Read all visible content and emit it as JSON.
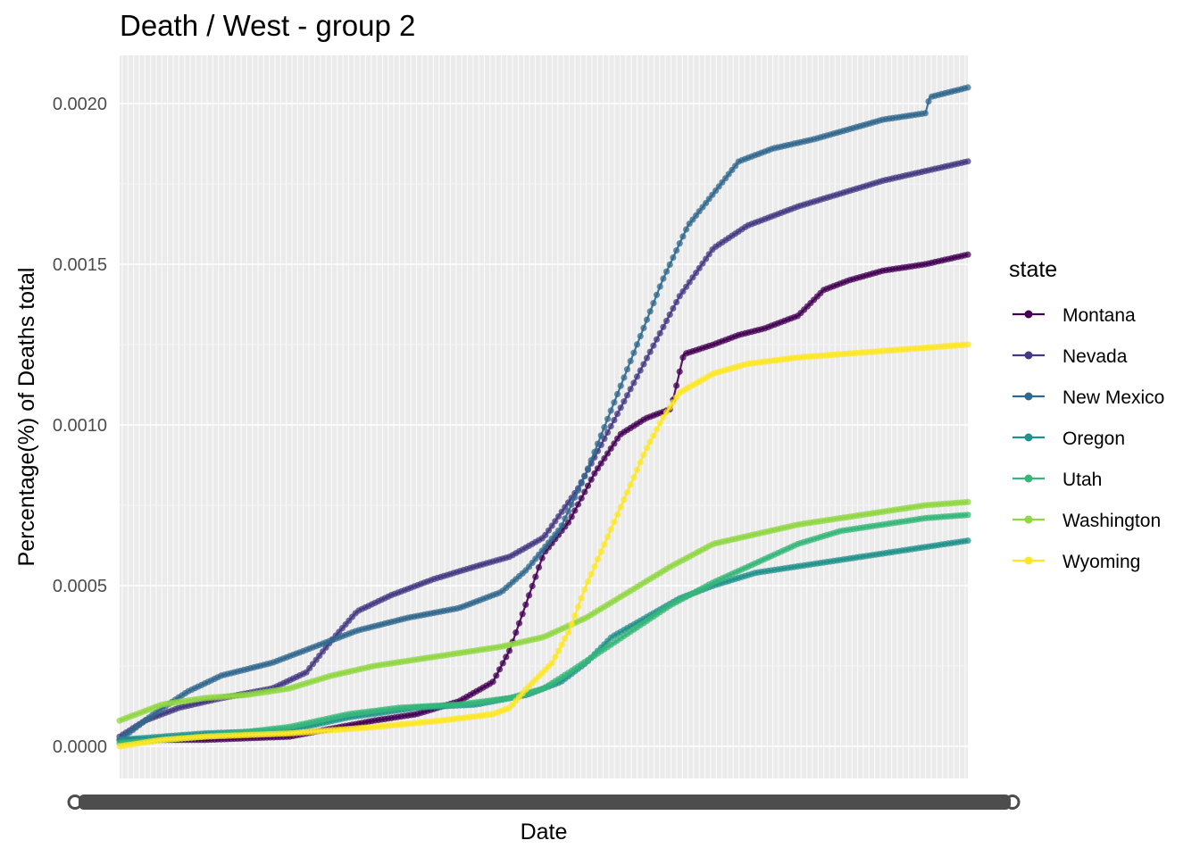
{
  "chart_data": {
    "type": "line",
    "title": "Death / West - group 2",
    "xlabel": "Date",
    "ylabel": "Percentage(%) of Deaths total",
    "ylim": [
      -0.0001,
      0.00215
    ],
    "xlim": [
      0,
      1
    ],
    "y_ticks": [
      0.0,
      0.0005,
      0.001,
      0.0015,
      0.002
    ],
    "y_tick_labels": [
      "0.0000",
      "0.0005",
      "0.0010",
      "0.0015",
      "0.0020"
    ],
    "x_tick_labels_note": "overlapping date labels rendered as an illegible dark band",
    "grid": true,
    "panel_background": "#ebebeb",
    "legend": {
      "title": "state",
      "position": "right"
    },
    "series": [
      {
        "name": "Montana",
        "color": "#440154",
        "points": [
          [
            0,
            2e-05
          ],
          [
            0.05,
            2e-05
          ],
          [
            0.1,
            2e-05
          ],
          [
            0.2,
            3e-05
          ],
          [
            0.3,
            8e-05
          ],
          [
            0.35,
            0.0001
          ],
          [
            0.4,
            0.00014
          ],
          [
            0.42,
            0.00017
          ],
          [
            0.44,
            0.0002
          ],
          [
            0.46,
            0.0003
          ],
          [
            0.48,
            0.00045
          ],
          [
            0.5,
            0.0006
          ],
          [
            0.53,
            0.0007
          ],
          [
            0.56,
            0.00085
          ],
          [
            0.59,
            0.00097
          ],
          [
            0.62,
            0.00102
          ],
          [
            0.65,
            0.00105
          ],
          [
            0.665,
            0.00122
          ],
          [
            0.7,
            0.00125
          ],
          [
            0.73,
            0.00128
          ],
          [
            0.76,
            0.0013
          ],
          [
            0.8,
            0.00134
          ],
          [
            0.83,
            0.00142
          ],
          [
            0.86,
            0.00145
          ],
          [
            0.9,
            0.00148
          ],
          [
            0.95,
            0.0015
          ],
          [
            1,
            0.00153
          ]
        ]
      },
      {
        "name": "Nevada",
        "color": "#443A83",
        "points": [
          [
            0,
            3e-05
          ],
          [
            0.03,
            8e-05
          ],
          [
            0.07,
            0.00012
          ],
          [
            0.12,
            0.00015
          ],
          [
            0.18,
            0.00018
          ],
          [
            0.22,
            0.00023
          ],
          [
            0.25,
            0.00033
          ],
          [
            0.28,
            0.00042
          ],
          [
            0.32,
            0.00047
          ],
          [
            0.37,
            0.00052
          ],
          [
            0.42,
            0.00056
          ],
          [
            0.46,
            0.00059
          ],
          [
            0.5,
            0.00065
          ],
          [
            0.54,
            0.0008
          ],
          [
            0.58,
            0.001
          ],
          [
            0.62,
            0.0012
          ],
          [
            0.66,
            0.0014
          ],
          [
            0.7,
            0.00155
          ],
          [
            0.74,
            0.00162
          ],
          [
            0.8,
            0.00168
          ],
          [
            0.85,
            0.00172
          ],
          [
            0.9,
            0.00176
          ],
          [
            0.95,
            0.00179
          ],
          [
            1,
            0.00182
          ]
        ]
      },
      {
        "name": "New Mexico",
        "color": "#31688E",
        "points": [
          [
            0,
            2e-05
          ],
          [
            0.04,
            0.0001
          ],
          [
            0.08,
            0.00017
          ],
          [
            0.12,
            0.00022
          ],
          [
            0.18,
            0.00026
          ],
          [
            0.22,
            0.0003
          ],
          [
            0.28,
            0.00036
          ],
          [
            0.34,
            0.0004
          ],
          [
            0.4,
            0.00043
          ],
          [
            0.45,
            0.00048
          ],
          [
            0.48,
            0.00055
          ],
          [
            0.52,
            0.00068
          ],
          [
            0.55,
            0.00085
          ],
          [
            0.58,
            0.00105
          ],
          [
            0.61,
            0.00125
          ],
          [
            0.64,
            0.00145
          ],
          [
            0.67,
            0.00162
          ],
          [
            0.7,
            0.00172
          ],
          [
            0.73,
            0.00182
          ],
          [
            0.77,
            0.00186
          ],
          [
            0.82,
            0.00189
          ],
          [
            0.86,
            0.00192
          ],
          [
            0.9,
            0.00195
          ],
          [
            0.95,
            0.00197
          ],
          [
            0.955,
            0.00202
          ],
          [
            1,
            0.00205
          ]
        ]
      },
      {
        "name": "Oregon",
        "color": "#21918C",
        "points": [
          [
            0,
            2e-05
          ],
          [
            0.1,
            4e-05
          ],
          [
            0.2,
            5e-05
          ],
          [
            0.27,
            9e-05
          ],
          [
            0.35,
            0.00012
          ],
          [
            0.42,
            0.00013
          ],
          [
            0.48,
            0.00016
          ],
          [
            0.52,
            0.0002
          ],
          [
            0.55,
            0.00026
          ],
          [
            0.58,
            0.00034
          ],
          [
            0.62,
            0.0004
          ],
          [
            0.66,
            0.00046
          ],
          [
            0.7,
            0.0005
          ],
          [
            0.75,
            0.00054
          ],
          [
            0.8,
            0.00056
          ],
          [
            0.85,
            0.00058
          ],
          [
            0.9,
            0.0006
          ],
          [
            0.95,
            0.00062
          ],
          [
            1,
            0.00064
          ]
        ]
      },
      {
        "name": "Utah",
        "color": "#35B779",
        "points": [
          [
            0,
            1e-05
          ],
          [
            0.1,
            3e-05
          ],
          [
            0.2,
            6e-05
          ],
          [
            0.27,
            0.0001
          ],
          [
            0.33,
            0.00012
          ],
          [
            0.4,
            0.00013
          ],
          [
            0.46,
            0.00015
          ],
          [
            0.5,
            0.00018
          ],
          [
            0.53,
            0.00023
          ],
          [
            0.57,
            0.0003
          ],
          [
            0.61,
            0.00037
          ],
          [
            0.65,
            0.00044
          ],
          [
            0.7,
            0.00051
          ],
          [
            0.75,
            0.00057
          ],
          [
            0.8,
            0.00063
          ],
          [
            0.85,
            0.00067
          ],
          [
            0.9,
            0.00069
          ],
          [
            0.95,
            0.00071
          ],
          [
            1,
            0.00072
          ]
        ]
      },
      {
        "name": "Washington",
        "color": "#90D743",
        "points": [
          [
            0,
            8e-05
          ],
          [
            0.05,
            0.00013
          ],
          [
            0.1,
            0.00015
          ],
          [
            0.15,
            0.00016
          ],
          [
            0.2,
            0.00018
          ],
          [
            0.25,
            0.00022
          ],
          [
            0.3,
            0.00025
          ],
          [
            0.35,
            0.00027
          ],
          [
            0.4,
            0.00029
          ],
          [
            0.45,
            0.00031
          ],
          [
            0.5,
            0.00034
          ],
          [
            0.55,
            0.0004
          ],
          [
            0.6,
            0.00048
          ],
          [
            0.65,
            0.00056
          ],
          [
            0.7,
            0.00063
          ],
          [
            0.75,
            0.00066
          ],
          [
            0.8,
            0.00069
          ],
          [
            0.85,
            0.00071
          ],
          [
            0.9,
            0.00073
          ],
          [
            0.95,
            0.00075
          ],
          [
            1,
            0.00076
          ]
        ]
      },
      {
        "name": "Wyoming",
        "color": "#FDE725",
        "points": [
          [
            0,
            0.0
          ],
          [
            0.05,
            2e-05
          ],
          [
            0.1,
            3e-05
          ],
          [
            0.2,
            4e-05
          ],
          [
            0.3,
            6e-05
          ],
          [
            0.38,
            8e-05
          ],
          [
            0.44,
            0.0001
          ],
          [
            0.46,
            0.00012
          ],
          [
            0.48,
            0.00018
          ],
          [
            0.51,
            0.00026
          ],
          [
            0.53,
            0.00036
          ],
          [
            0.55,
            0.0005
          ],
          [
            0.57,
            0.00062
          ],
          [
            0.6,
            0.0008
          ],
          [
            0.62,
            0.00092
          ],
          [
            0.64,
            0.00102
          ],
          [
            0.66,
            0.0011
          ],
          [
            0.7,
            0.00116
          ],
          [
            0.74,
            0.00119
          ],
          [
            0.8,
            0.00121
          ],
          [
            0.85,
            0.00122
          ],
          [
            0.9,
            0.00123
          ],
          [
            0.95,
            0.00124
          ],
          [
            1,
            0.00125
          ]
        ]
      }
    ]
  }
}
